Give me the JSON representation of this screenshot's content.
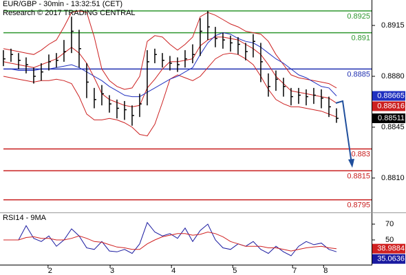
{
  "chart_data": [
    {
      "type": "ohlc",
      "title": "EUR/GBP - 30min - 13:32:51 (CET)",
      "subtitle": "Research © 2017 TRADING CENTRAL",
      "color": "#000000",
      "high": [
        0.8898,
        0.8899,
        0.8896,
        0.8893,
        0.8886,
        0.8889,
        0.8895,
        0.8896,
        0.8905,
        0.8921,
        0.8912,
        0.8889,
        0.8872,
        0.8874,
        0.8867,
        0.8864,
        0.8863,
        0.886,
        0.8868,
        0.8898,
        0.8899,
        0.8896,
        0.8894,
        0.8893,
        0.8898,
        0.8902,
        0.892,
        0.8925,
        0.8914,
        0.891,
        0.8908,
        0.8907,
        0.8903,
        0.8909,
        0.8903,
        0.8882,
        0.8884,
        0.8879,
        0.8872,
        0.8872,
        0.8871,
        0.8872,
        0.8871,
        0.8866,
        0.8858
      ],
      "low": [
        0.8887,
        0.889,
        0.8885,
        0.8882,
        0.8875,
        0.8877,
        0.8884,
        0.8886,
        0.889,
        0.8896,
        0.8886,
        0.8865,
        0.8858,
        0.886,
        0.8855,
        0.8851,
        0.885,
        0.8846,
        0.8852,
        0.886,
        0.8889,
        0.8886,
        0.8884,
        0.8883,
        0.8886,
        0.8889,
        0.8894,
        0.8905,
        0.89,
        0.8899,
        0.8897,
        0.8895,
        0.8891,
        0.8893,
        0.8876,
        0.8866,
        0.887,
        0.8866,
        0.886,
        0.8861,
        0.886,
        0.8861,
        0.8858,
        0.8852,
        0.8848
      ],
      "close": [
        0.8892,
        0.8895,
        0.8891,
        0.8888,
        0.888,
        0.8883,
        0.889,
        0.8891,
        0.8897,
        0.8911,
        0.8899,
        0.8876,
        0.8864,
        0.8868,
        0.8861,
        0.8858,
        0.8857,
        0.8853,
        0.8861,
        0.889,
        0.8895,
        0.8891,
        0.8889,
        0.8888,
        0.8892,
        0.8895,
        0.8911,
        0.8914,
        0.8906,
        0.8905,
        0.8903,
        0.8902,
        0.8897,
        0.8904,
        0.889,
        0.8873,
        0.8878,
        0.8873,
        0.8866,
        0.8867,
        0.8866,
        0.8867,
        0.8865,
        0.8859,
        0.88511
      ],
      "series": [
        {
          "color": "#cc2020",
          "values": [
            0.8899,
            0.8898,
            0.8897,
            0.8896,
            0.8895,
            0.8898,
            0.8902,
            0.8905,
            0.8914,
            0.8924,
            0.8925,
            0.8924,
            0.8907,
            0.8885,
            0.8877,
            0.8873,
            0.8871,
            0.8872,
            0.888,
            0.8904,
            0.8908,
            0.8907,
            0.8902,
            0.8898,
            0.8902,
            0.8907,
            0.8921,
            0.8924,
            0.8922,
            0.8919,
            0.8916,
            0.8914,
            0.8911,
            0.891,
            0.8909,
            0.8904,
            0.8895,
            0.8888,
            0.8881,
            0.8879,
            0.8878,
            0.8877,
            0.8876,
            0.8875,
            0.8872
          ]
        },
        {
          "color": "#cc2020",
          "values": [
            0.888,
            0.8879,
            0.8878,
            0.8877,
            0.8876,
            0.8877,
            0.8877,
            0.8878,
            0.8877,
            0.8875,
            0.8866,
            0.8854,
            0.885,
            0.885,
            0.8851,
            0.885,
            0.8848,
            0.8845,
            0.884,
            0.8839,
            0.8847,
            0.8862,
            0.8878,
            0.8881,
            0.8879,
            0.8877,
            0.888,
            0.8886,
            0.8892,
            0.8895,
            0.8896,
            0.8895,
            0.8892,
            0.8888,
            0.888,
            0.8871,
            0.8864,
            0.8861,
            0.8859,
            0.8859,
            0.8858,
            0.8857,
            0.8856,
            0.8854,
            0.8852
          ]
        },
        {
          "color": "#cc2020",
          "tag": true,
          "values": [
            0.889,
            0.8889,
            0.8888,
            0.8887,
            0.8886,
            0.8888,
            0.889,
            0.8892,
            0.8896,
            0.89,
            0.8896,
            0.8889,
            0.8879,
            0.8868,
            0.8864,
            0.8862,
            0.886,
            0.8859,
            0.886,
            0.8872,
            0.8878,
            0.8885,
            0.889,
            0.889,
            0.8891,
            0.8892,
            0.8901,
            0.8905,
            0.8907,
            0.8907,
            0.8906,
            0.8905,
            0.8902,
            0.8899,
            0.8895,
            0.8888,
            0.888,
            0.8875,
            0.887,
            0.8869,
            0.8868,
            0.8867,
            0.8866,
            0.8865,
            0.88616
          ]
        },
        {
          "color": "#2030c0",
          "tag": true,
          "values": [
            0.8885,
            0.8885,
            0.8884,
            0.8884,
            0.8884,
            0.8885,
            0.8885,
            0.8886,
            0.8887,
            0.8888,
            0.8886,
            0.8883,
            0.888,
            0.8877,
            0.8873,
            0.887,
            0.8867,
            0.8866,
            0.8866,
            0.8869,
            0.8872,
            0.8875,
            0.8878,
            0.888,
            0.8883,
            0.8886,
            0.8895,
            0.8903,
            0.8908,
            0.891,
            0.8909,
            0.8906,
            0.8904,
            0.8903,
            0.89,
            0.8896,
            0.8892,
            0.8889,
            0.8885,
            0.8881,
            0.8879,
            0.8876,
            0.8873,
            0.8872,
            0.88665
          ]
        }
      ],
      "levels": [
        {
          "value": 0.8925,
          "color": "#2e962e"
        },
        {
          "value": 0.891,
          "color": "#2e962e"
        },
        {
          "value": 0.8885,
          "color": "#1f2fb0"
        },
        {
          "value": 0.883,
          "color": "#c81e1e"
        },
        {
          "value": 0.8815,
          "color": "#c81e1e"
        },
        {
          "value": 0.8795,
          "color": "#c81e1e"
        }
      ],
      "xlim": [
        -0.45,
        48.64
      ],
      "ylim": [
        0.87868,
        0.89325
      ],
      "yticks": [
        0.8915,
        {
          "value": 0.888,
          "label": "0.8880"
        },
        0.8845,
        {
          "value": 0.881,
          "label": "0.8810"
        }
      ]
    },
    {
      "type": "line",
      "title": "RSI14 - 9MA",
      "series": [
        {
          "color": "#1a1aa0",
          "values": [
            50,
            50,
            50,
            68,
            52,
            48,
            55,
            42,
            50,
            64,
            55,
            40,
            38,
            48,
            36,
            35,
            38,
            33,
            45,
            72,
            60,
            55,
            58,
            52,
            65,
            48,
            62,
            70,
            50,
            40,
            38,
            45,
            42,
            48,
            38,
            33,
            42,
            35,
            30,
            42,
            48,
            44,
            46,
            38,
            35.0636
          ]
        },
        {
          "color": "#d02020",
          "values": [
            50,
            50,
            50,
            53,
            54,
            52,
            52,
            50,
            50,
            52,
            55,
            52,
            48,
            47,
            44,
            41,
            40,
            38,
            38,
            45,
            50,
            54,
            56,
            58,
            58,
            56,
            57,
            60,
            58,
            54,
            48,
            45,
            42,
            42,
            42,
            40,
            40,
            38,
            36,
            38,
            40,
            41,
            42,
            40,
            38.9884
          ]
        }
      ],
      "xlim": [
        -0.45,
        48.64
      ],
      "ylim": [
        18.7,
        83.9
      ],
      "yticks": [
        70,
        50
      ],
      "xticks": [
        {
          "value": 5.9,
          "label": "2"
        },
        {
          "value": 14.1,
          "label": "3"
        },
        {
          "value": 22.2,
          "label": "4"
        },
        {
          "value": 30.3,
          "label": "5"
        },
        {
          "value": 38.2,
          "label": "7"
        },
        {
          "value": 42.3,
          "label": "8"
        }
      ]
    }
  ]
}
